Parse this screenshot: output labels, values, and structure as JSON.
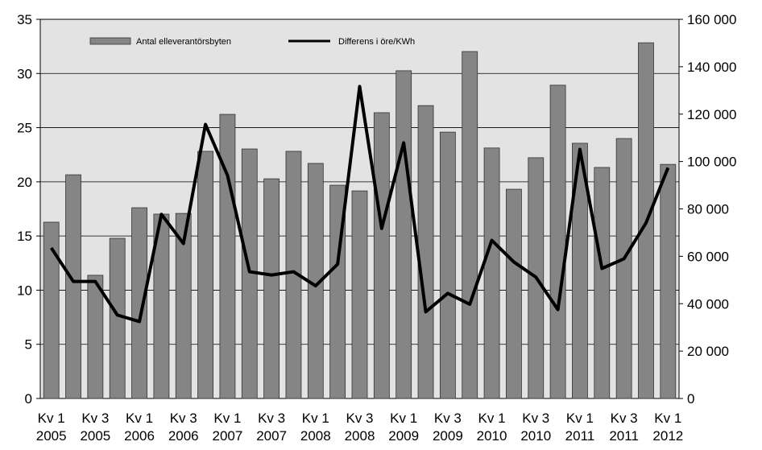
{
  "chart_data": {
    "type": "bar-line",
    "categories": [
      "Kv 1\n2005",
      null,
      "Kv 3\n2005",
      null,
      "Kv 1\n2006",
      null,
      "Kv 3\n2006",
      null,
      "Kv 1\n2007",
      null,
      "Kv 3\n2007",
      null,
      "Kv 1\n2008",
      null,
      "Kv 3\n2008",
      null,
      "Kv 1\n2009",
      null,
      "Kv 3\n2009",
      null,
      "Kv 1\n2010",
      null,
      "Kv 3\n2010",
      null,
      "Kv 1\n2011",
      null,
      "Kv 3\n2011",
      null,
      "Kv 1\n2012"
    ],
    "series": [
      {
        "name": "Antal elleverantörsbyten",
        "type": "bar",
        "axis": "y2",
        "color": "#858585",
        "values": [
          74400,
          94400,
          52000,
          67600,
          80500,
          77800,
          78100,
          104300,
          119900,
          105300,
          92700,
          104300,
          99200,
          90000,
          87600,
          120600,
          138300,
          123600,
          112400,
          146400,
          105700,
          88300,
          101600,
          132200,
          107700,
          97500,
          109700,
          150100,
          98800
        ]
      },
      {
        "name": "Differens i öre/KWh",
        "type": "line",
        "axis": "y",
        "color": "#000000",
        "values": [
          13.9,
          10.8,
          10.8,
          7.7,
          7.1,
          17.0,
          14.3,
          25.3,
          20.6,
          11.7,
          11.4,
          11.7,
          10.4,
          12.4,
          28.8,
          15.7,
          23.6,
          8.0,
          9.7,
          8.7,
          14.6,
          12.6,
          11.2,
          8.2,
          23.0,
          12.0,
          12.9,
          16.2,
          21.3
        ]
      }
    ],
    "ylim": [
      0,
      35
    ],
    "yticks": [
      0,
      5,
      10,
      15,
      20,
      25,
      30,
      35
    ],
    "y2lim": [
      0,
      160000
    ],
    "y2ticks": [
      0,
      {
        "value": 20000,
        "label": "20 000"
      },
      {
        "value": 40000,
        "label": "40 000"
      },
      {
        "value": 60000,
        "label": "60 000"
      },
      {
        "value": 80000,
        "label": "80 000"
      },
      {
        "value": 100000,
        "label": "100 000"
      },
      {
        "value": 120000,
        "label": "120 000"
      },
      {
        "value": 140000,
        "label": "140 000"
      },
      {
        "value": 160000,
        "label": "160 000"
      }
    ],
    "grid": true
  }
}
